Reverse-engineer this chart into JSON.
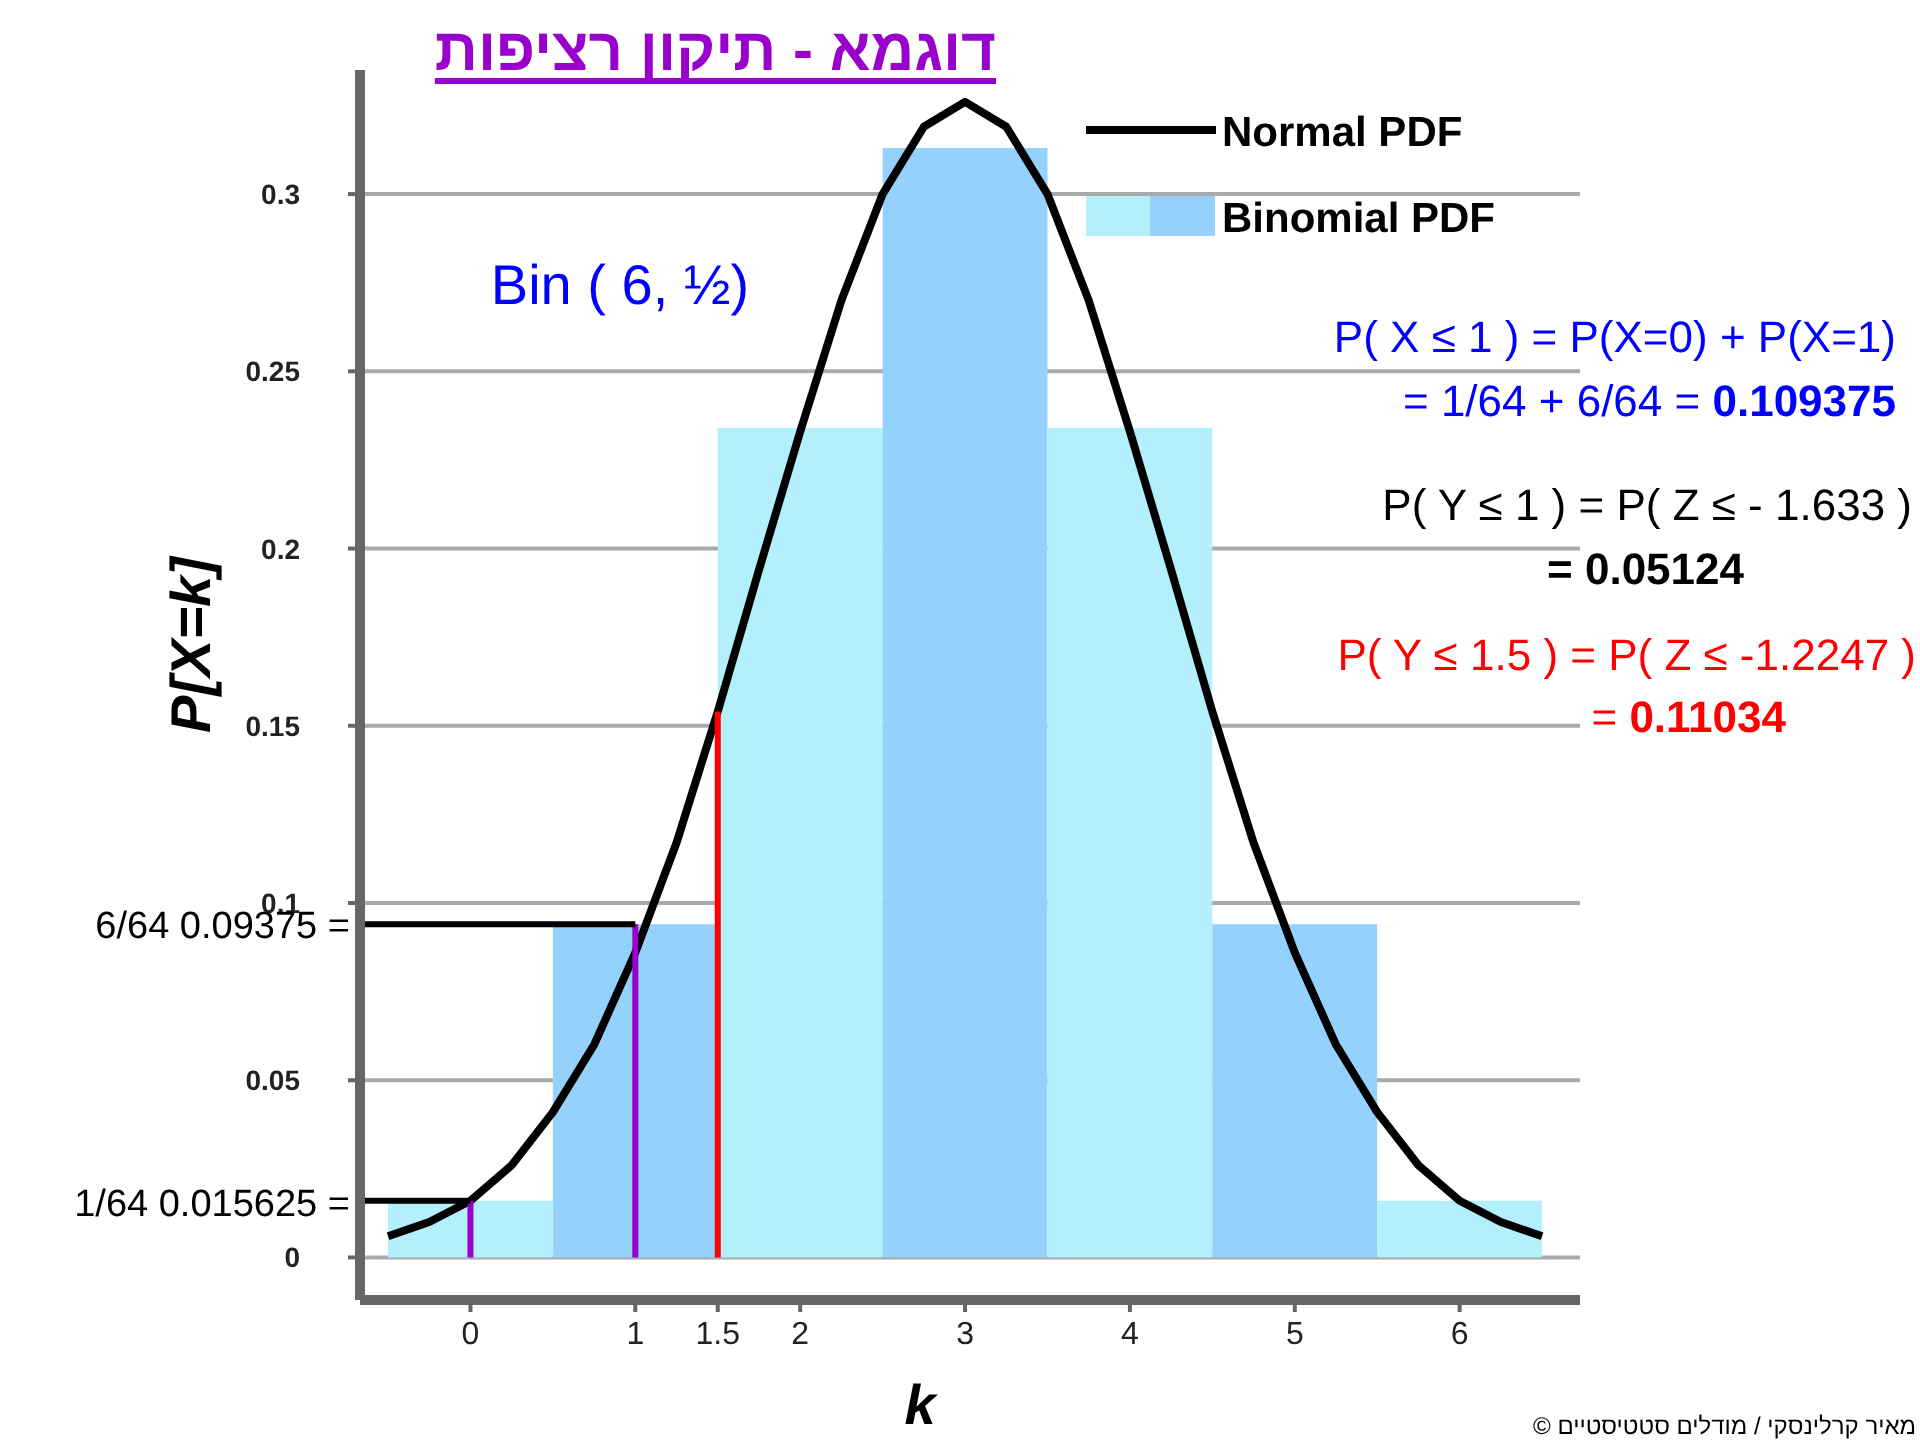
{
  "chart_data": {
    "type": "bar",
    "title": "דוגמא - תיקון רציפות",
    "xlabel": "k",
    "ylabel": "P[X=k]",
    "xlim": [
      -0.67,
      6.73
    ],
    "ylim": [
      -0.012,
      0.335
    ],
    "xticks": [
      0,
      1,
      1.5,
      2,
      3,
      4,
      5,
      6
    ],
    "yticks": [
      0,
      0.05,
      0.1,
      0.15,
      0.2,
      0.25,
      0.3
    ],
    "grid": "y",
    "legend": "top right",
    "series": [
      {
        "name": "Binomial PDF",
        "x": [
          0,
          1,
          2,
          3,
          4,
          5,
          6
        ],
        "colors": [
          "#b3effc",
          "#94d1fc",
          "#b3effc",
          "#94d1fc",
          "#b3effc",
          "#94d1fc",
          "#b3effc"
        ],
        "values": [
          0.016,
          0.094,
          0.234,
          0.313,
          0.234,
          0.094,
          0.016
        ]
      },
      {
        "name": "Normal PDF",
        "type": "line",
        "color": "#000000",
        "x": [
          -0.5,
          -0.25,
          0,
          0.25,
          0.5,
          0.75,
          1,
          1.25,
          1.5,
          1.75,
          2,
          2.25,
          2.5,
          2.75,
          3,
          3.25,
          3.5,
          3.75,
          4,
          4.25,
          4.5,
          4.75,
          5,
          5.25,
          5.5,
          5.75,
          6,
          6.25,
          6.5
        ],
        "values": [
          0.006,
          0.01,
          0.016,
          0.026,
          0.041,
          0.06,
          0.086,
          0.117,
          0.154,
          0.194,
          0.233,
          0.27,
          0.3,
          0.319,
          0.326,
          0.319,
          0.3,
          0.27,
          0.233,
          0.194,
          0.154,
          0.117,
          0.086,
          0.06,
          0.041,
          0.026,
          0.016,
          0.01,
          0.006
        ]
      },
      {
        "type": "line",
        "color": "#9900cc",
        "x": [
          0,
          0
        ],
        "values": [
          0,
          0.016
        ]
      },
      {
        "type": "line",
        "color": "#9900cc",
        "x": [
          1,
          1
        ],
        "values": [
          0,
          0.094
        ]
      },
      {
        "type": "line",
        "color": "#ff0000",
        "x": [
          1.5,
          1.5
        ],
        "values": [
          0,
          0.154
        ]
      },
      {
        "type": "line",
        "color": "#000000",
        "x": [
          -0.67,
          0
        ],
        "values": [
          0.016,
          0.016
        ]
      },
      {
        "type": "line",
        "color": "#000000",
        "x": [
          -0.67,
          1
        ],
        "values": [
          0.094,
          0.094
        ]
      }
    ],
    "annotations": [
      "Bin ( 6, ½)",
      "P( X ≤ 1 ) = P(X=0) + P(X=1)",
      "=  1/64 + 6/64 = 0.109375",
      "P( Y ≤ 1 ) = P( Z ≤ - 1.633 )",
      "= 0.05124",
      "P( Y ≤ 1.5 ) = P( Z ≤ -1.2247 )",
      "=  0.11034",
      "© מאיר קרלינסקי / מודלים סטטיסטיים",
      "1/64 0.015625 =",
      "6/64 0.09375 ="
    ]
  }
}
